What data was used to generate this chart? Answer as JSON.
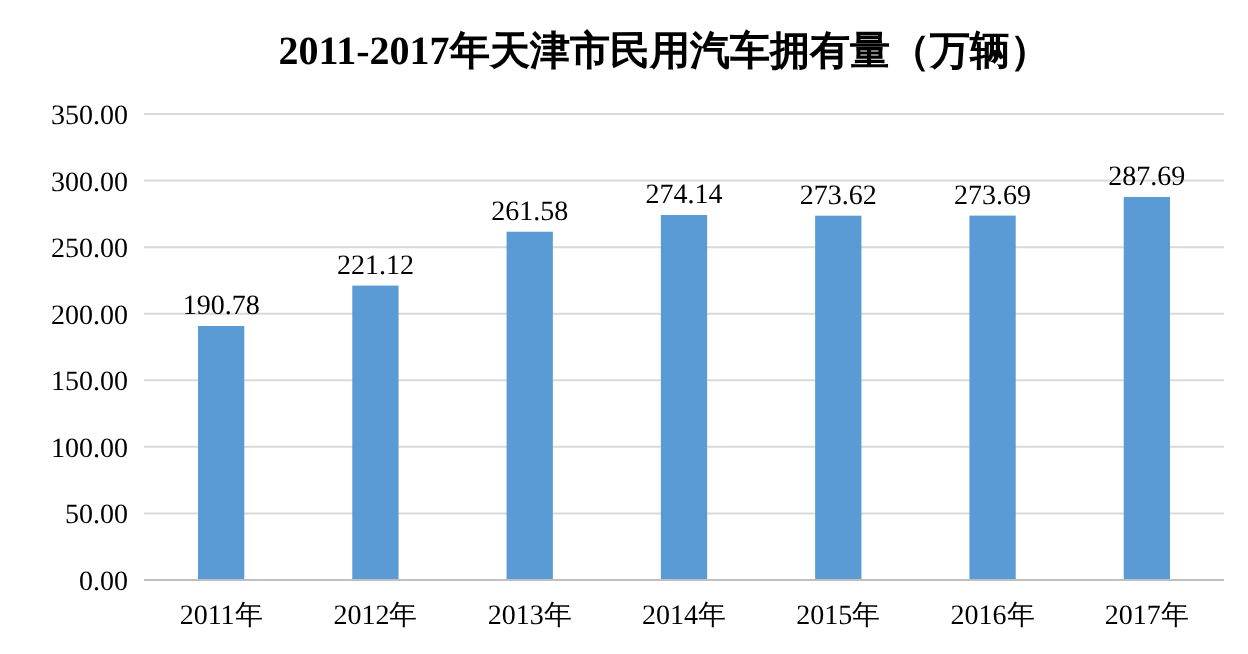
{
  "chart_data": {
    "type": "bar",
    "title": "2011-2017年天津市民用汽车拥有量（万辆）",
    "categories": [
      "2011年",
      "2012年",
      "2013年",
      "2014年",
      "2015年",
      "2016年",
      "2017年"
    ],
    "values": [
      190.78,
      221.12,
      261.58,
      274.14,
      273.62,
      273.69,
      287.69
    ],
    "color": "#5b9bd5",
    "ylim": [
      0,
      350
    ],
    "yticks": [
      {
        "value": 0,
        "label": "0.00"
      },
      {
        "value": 50,
        "label": "50.00"
      },
      {
        "value": 100,
        "label": "100.00"
      },
      {
        "value": 150,
        "label": "150.00"
      },
      {
        "value": 200,
        "label": "200.00"
      },
      {
        "value": 250,
        "label": "250.00"
      },
      {
        "value": 300,
        "label": "300.00"
      },
      {
        "value": 350,
        "label": "350.00"
      }
    ],
    "grid": "y",
    "data_labels": true
  }
}
